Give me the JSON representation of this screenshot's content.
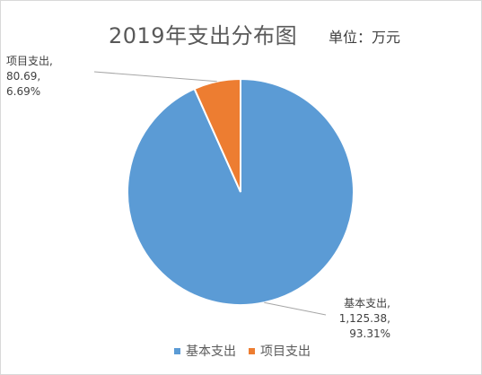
{
  "chart_data": {
    "type": "pie",
    "title": "2019年支出分布图",
    "unit_note": "单位：万元",
    "categories": [
      "基本支出",
      "项目支出"
    ],
    "values": [
      1125.38,
      80.69
    ],
    "percentages": [
      "93.31%",
      "6.69%"
    ],
    "value_labels": [
      "1,125.38,",
      "80.69,"
    ],
    "category_labels": [
      "基本支出,",
      "项目支出,"
    ],
    "colors": [
      "#5b9bd5",
      "#ed7d31"
    ],
    "legend": [
      "基本支出",
      "项目支出"
    ],
    "legend_placement": "bottom"
  }
}
